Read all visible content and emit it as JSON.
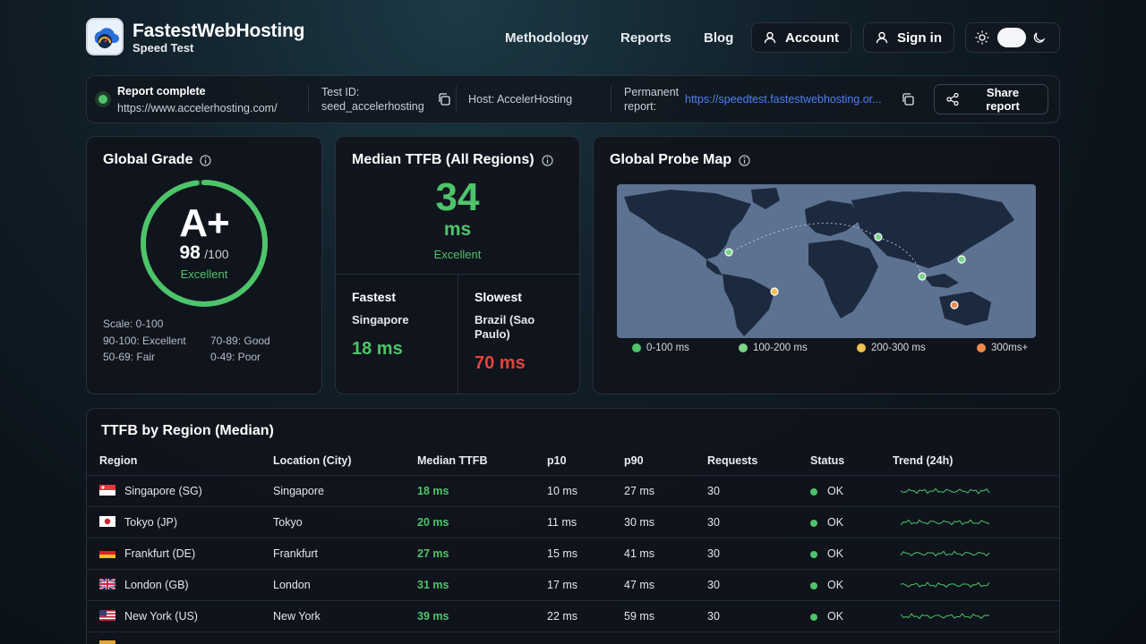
{
  "header": {
    "brand_title": "FastestWebHosting",
    "brand_sub": "Speed Test",
    "nav": [
      "Methodology",
      "Reports",
      "Blog"
    ],
    "account_label": "Account",
    "signin_label": "Sign in",
    "icons": {
      "account": "user-icon",
      "signin": "user-icon",
      "theme_light": "sun-icon",
      "theme_dark": "moon-icon"
    }
  },
  "status": {
    "state": "Report complete",
    "url": "https://www.accelerhosting.com/",
    "test_id_label": "Test ID:",
    "test_id": "seed_accelerhosting",
    "host": "Host: AccelerHosting",
    "permanent_label_1": "Permanent",
    "permanent_label_2": "report:",
    "permanent_link": "https://speedtest.fastestwebhosting.or...",
    "share_1": "Share",
    "share_2": "report",
    "dot_color": "#4ec46a"
  },
  "grade": {
    "title": "Global Grade",
    "letter": "A+",
    "score": "98",
    "out_of": "/100",
    "label": "Excellent",
    "score_value": 98,
    "scale": "Scale: 0-100",
    "bands": [
      "90-100: Excellent",
      "70-89: Good",
      "50-69: Fair",
      "0-49: Poor"
    ]
  },
  "ttfb": {
    "title": "Median TTFB (All Regions)",
    "value": "34",
    "unit": "ms",
    "label": "Excellent",
    "fastest_label": "Fastest",
    "fastest_city": "Singapore",
    "fastest_value": "18 ms",
    "slowest_label": "Slowest",
    "slowest_city_1": "Brazil (Sao",
    "slowest_city_2": "Paulo)",
    "slowest_value": "70 ms"
  },
  "map": {
    "title": "Global Probe Map",
    "legend": [
      {
        "label": "0-100 ms",
        "color": "#4ec46a"
      },
      {
        "label": "100-200 ms",
        "color": "#7ed389"
      },
      {
        "label": "200-300 ms",
        "color": "#f2c14e"
      },
      {
        "label": "300ms+",
        "color": "#f08a4b"
      }
    ]
  },
  "table": {
    "title": "TTFB by Region (Median)",
    "headers": [
      "Region",
      "Location (City)",
      "Median TTFB",
      "p10",
      "p90",
      "Requests",
      "Status",
      "Trend (24h)"
    ],
    "rows": [
      {
        "region": "Singapore (SG)",
        "city": "Singapore",
        "median": "18 ms",
        "p10": "10 ms",
        "p90": "27 ms",
        "requests": "30",
        "status": "OK",
        "flag": "sg"
      },
      {
        "region": "Tokyo (JP)",
        "city": "Tokyo",
        "median": "20 ms",
        "p10": "11 ms",
        "p90": "30 ms",
        "requests": "30",
        "status": "OK",
        "flag": "jp"
      },
      {
        "region": "Frankfurt (DE)",
        "city": "Frankfurt",
        "median": "27 ms",
        "p10": "15 ms",
        "p90": "41 ms",
        "requests": "30",
        "status": "OK",
        "flag": "de"
      },
      {
        "region": "London (GB)",
        "city": "London",
        "median": "31 ms",
        "p10": "17 ms",
        "p90": "47 ms",
        "requests": "30",
        "status": "OK",
        "flag": "gb"
      },
      {
        "region": "New York (US)",
        "city": "New York",
        "median": "39 ms",
        "p10": "22 ms",
        "p90": "59 ms",
        "requests": "30",
        "status": "OK",
        "flag": "us"
      }
    ]
  }
}
